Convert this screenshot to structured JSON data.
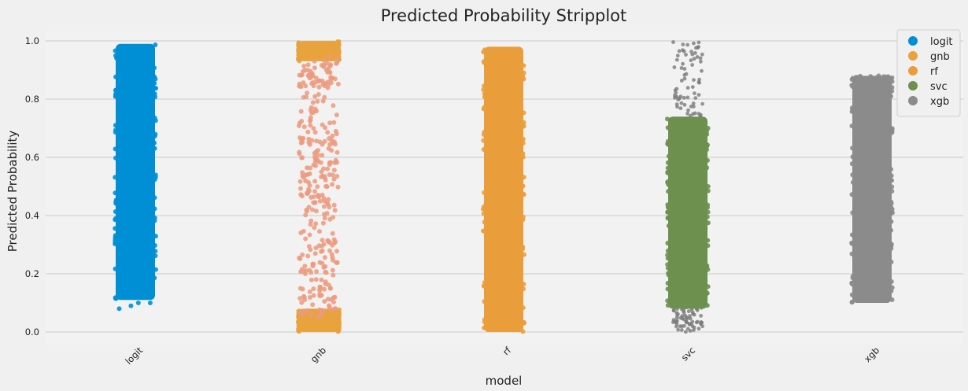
{
  "chart_data": {
    "type": "scatter",
    "title": "Predicted Probability Stripplot",
    "xlabel": "model",
    "ylabel": "Predicted Probability",
    "categories": [
      "logit",
      "gnb",
      "rf",
      "svc",
      "xgb"
    ],
    "ylim": [
      -0.05,
      1.04
    ],
    "yticks": [
      0.0,
      0.2,
      0.4,
      0.6,
      0.8,
      1.0
    ],
    "ytick_labels": [
      "0.0",
      "0.2",
      "0.4",
      "0.6",
      "0.8",
      "1.0"
    ],
    "grid": true,
    "legend_position": "top-right",
    "series": [
      {
        "name": "logit",
        "color": "#008fd5",
        "range_dense": [
          0.11,
          0.99
        ],
        "outliers": [
          0.08,
          0.09,
          0.1,
          0.1
        ]
      },
      {
        "name": "gnb",
        "color": "#e8a33d",
        "sparse_color": "#ec9a7e",
        "range_dense_low": [
          0.0,
          0.08
        ],
        "range_dense_high": [
          0.93,
          1.0
        ],
        "sparse_range": [
          0.05,
          0.95
        ]
      },
      {
        "name": "rf",
        "color": "#ea9e3b",
        "range_dense": [
          0.0,
          0.98
        ]
      },
      {
        "name": "svc",
        "color": "#6d904f",
        "range_dense": [
          0.08,
          0.74
        ],
        "sparse_range": [
          0.0,
          1.0
        ]
      },
      {
        "name": "xgb",
        "color": "#8b8b8b",
        "range_dense": [
          0.1,
          0.88
        ]
      }
    ]
  }
}
